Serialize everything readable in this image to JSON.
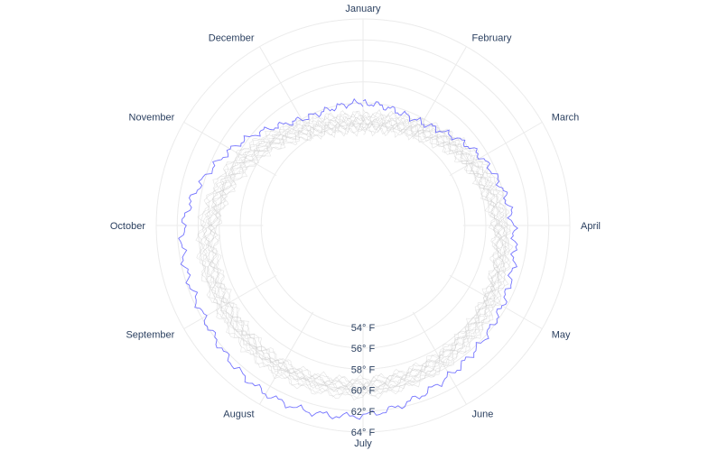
{
  "chart_data": {
    "type": "line",
    "subtype": "polar",
    "angular_axis": {
      "categories": [
        "January",
        "February",
        "March",
        "April",
        "May",
        "June",
        "July",
        "August",
        "September",
        "October",
        "November",
        "December"
      ],
      "direction": "clockwise",
      "rotation": "January at top"
    },
    "radial_axis": {
      "range": [
        44.3,
        64
      ],
      "tick_values": [
        54,
        56,
        58,
        60,
        62,
        64
      ],
      "tick_labels": [
        "54° F",
        "56° F",
        "58° F",
        "60° F",
        "62° F",
        "64° F"
      ]
    },
    "grid": true,
    "highlight_color": "#6666ff",
    "background_color": "#cccccc",
    "series": [
      {
        "values": [
          54.5,
          55.2,
          56.6,
          57.6,
          58.6,
          59.4,
          60.0,
          60.2,
          59.8,
          59.2,
          57.4,
          55.2
        ]
      },
      {
        "values": [
          54.0,
          54.8,
          56.2,
          57.2,
          58.2,
          59.0,
          59.6,
          59.8,
          59.4,
          58.8,
          57.0,
          54.8
        ]
      },
      {
        "values": [
          53.6,
          54.4,
          55.8,
          56.9,
          57.9,
          58.7,
          59.2,
          59.5,
          59.0,
          58.4,
          56.6,
          54.4
        ]
      },
      {
        "values": [
          53.2,
          54.0,
          55.5,
          56.6,
          57.6,
          58.4,
          58.9,
          59.2,
          58.7,
          58.1,
          56.2,
          54.0
        ]
      },
      {
        "values": [
          54.8,
          55.6,
          57.0,
          57.9,
          58.9,
          59.7,
          60.4,
          60.6,
          60.2,
          59.6,
          57.8,
          55.6
        ]
      },
      {
        "values": [
          54.2,
          55.0,
          56.4,
          57.4,
          58.4,
          59.2,
          59.8,
          60.0,
          59.6,
          59.0,
          57.2,
          55.0
        ]
      },
      {
        "values": [
          53.8,
          54.6,
          56.0,
          57.0,
          58.0,
          58.8,
          59.4,
          59.7,
          59.2,
          58.6,
          56.8,
          54.6
        ]
      },
      {
        "values": [
          53.4,
          54.3,
          55.7,
          56.8,
          57.8,
          58.6,
          59.1,
          59.4,
          58.9,
          58.3,
          56.4,
          54.2
        ]
      },
      {
        "values": [
          55.0,
          55.8,
          57.2,
          58.1,
          59.1,
          59.9,
          60.6,
          60.8,
          60.4,
          59.8,
          58.0,
          55.8
        ]
      },
      {
        "values": [
          54.6,
          55.4,
          56.8,
          57.8,
          58.8,
          59.6,
          60.2,
          60.4,
          60.0,
          59.4,
          57.6,
          55.4
        ]
      },
      {
        "values": [
          53.9,
          54.7,
          56.1,
          57.1,
          58.1,
          58.9,
          59.5,
          59.8,
          59.3,
          58.7,
          56.9,
          54.7
        ]
      },
      {
        "values": [
          54.3,
          55.1,
          56.5,
          57.5,
          58.5,
          59.3,
          59.9,
          60.1,
          59.7,
          59.1,
          57.3,
          55.1
        ]
      },
      {
        "highlight": true,
        "values": [
          56.0,
          55.6,
          57.3,
          58.6,
          59.6,
          60.8,
          62.4,
          62.8,
          61.8,
          61.4,
          58.8,
          56.0
        ]
      }
    ]
  }
}
